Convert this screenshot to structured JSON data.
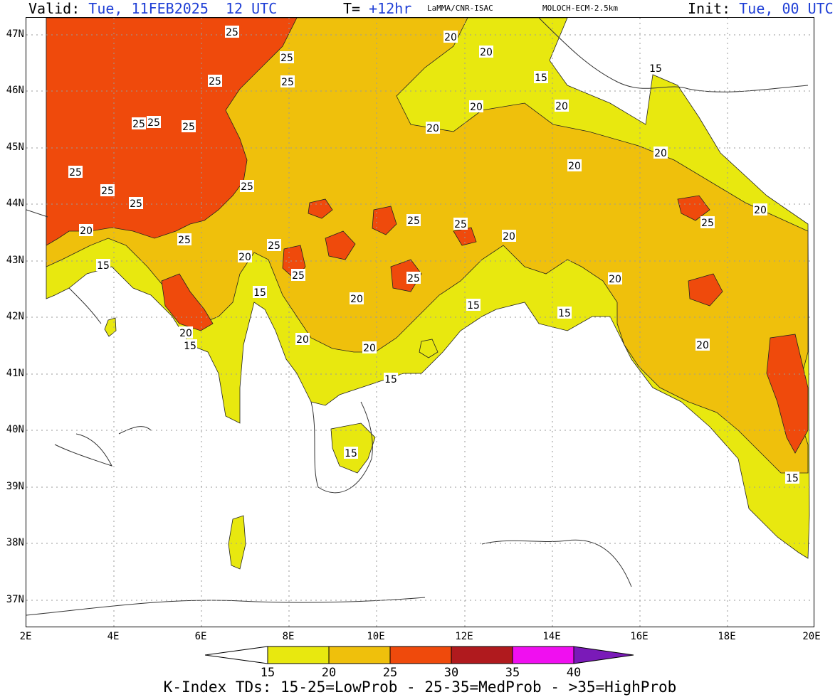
{
  "header": {
    "valid_label": "Valid:",
    "valid_value": "Tue, 11FEB2025  12 UTC",
    "t_label": "T=",
    "t_value": "+12hr",
    "source": "LaMMA/CNR-ISAC",
    "model": "MOLOCH-ECM-2.5km",
    "init_label": "Init:",
    "init_value": "Tue, 00 UTC"
  },
  "axes": {
    "lat_labels": [
      "47N",
      "46N",
      "45N",
      "44N",
      "43N",
      "42N",
      "41N",
      "40N",
      "39N",
      "38N",
      "37N"
    ],
    "lon_labels": [
      "2E",
      "4E",
      "6E",
      "8E",
      "10E",
      "12E",
      "14E",
      "16E",
      "18E",
      "20E"
    ]
  },
  "colorbar": {
    "ticks": [
      "15",
      "20",
      "25",
      "30",
      "35",
      "40"
    ],
    "colors": [
      "#ffffff",
      "#e8e80f",
      "#efc00c",
      "#ef4a0c",
      "#b01a1e",
      "#f00ff0",
      "#7a1ab8"
    ]
  },
  "contour_labels": [
    {
      "text": "25"
    },
    {
      "text": "25"
    },
    {
      "text": "25"
    },
    {
      "text": "25"
    },
    {
      "text": "25"
    },
    {
      "text": "25"
    },
    {
      "text": "25"
    },
    {
      "text": "25"
    },
    {
      "text": "25"
    },
    {
      "text": "25"
    },
    {
      "text": "25"
    },
    {
      "text": "25"
    },
    {
      "text": "25"
    },
    {
      "text": "25"
    },
    {
      "text": "25"
    },
    {
      "text": "25"
    },
    {
      "text": "25"
    },
    {
      "text": "25"
    },
    {
      "text": "20"
    },
    {
      "text": "20"
    },
    {
      "text": "20"
    },
    {
      "text": "20"
    },
    {
      "text": "20"
    },
    {
      "text": "20"
    },
    {
      "text": "20"
    },
    {
      "text": "20"
    },
    {
      "text": "20"
    },
    {
      "text": "20"
    },
    {
      "text": "20"
    },
    {
      "text": "20"
    },
    {
      "text": "20"
    },
    {
      "text": "20"
    },
    {
      "text": "20"
    },
    {
      "text": "20"
    },
    {
      "text": "20"
    },
    {
      "text": "15"
    },
    {
      "text": "15"
    },
    {
      "text": "15"
    },
    {
      "text": "15"
    },
    {
      "text": "15"
    },
    {
      "text": "15"
    },
    {
      "text": "15"
    },
    {
      "text": "15"
    },
    {
      "text": "15"
    },
    {
      "text": "15"
    }
  ],
  "footer": "K-Index TDs: 15-25=LowProb - 25-35=MedProb - >35=HighProb"
}
